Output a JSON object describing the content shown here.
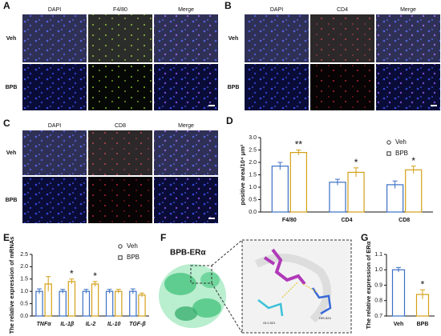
{
  "panels": [
    {
      "label": "A",
      "columns": [
        "DAPI",
        "F4/80",
        "Merge"
      ],
      "rows": [
        "Veh",
        "BPB"
      ]
    },
    {
      "label": "B",
      "columns": [
        "DAPI",
        "CD4",
        "Merge"
      ],
      "rows": [
        "Veh",
        "BPB"
      ]
    },
    {
      "label": "C",
      "columns": [
        "DAPI",
        "CD8",
        "Merge"
      ],
      "rows": [
        "Veh",
        "BPB"
      ]
    },
    {
      "label": "F",
      "title": "BPB-ERα",
      "residues": [
        "GLY-521",
        "HIS-524"
      ]
    }
  ],
  "chart_data": [
    {
      "type": "bar",
      "label": "D",
      "ylabel": "positive area/10⁴ μm²",
      "categories": [
        "F4/80",
        "CD4",
        "CD8"
      ],
      "series": [
        {
          "name": "Veh",
          "color": "#3b6fc4",
          "values": [
            1.85,
            1.2,
            1.1
          ],
          "errors": [
            0.15,
            0.12,
            0.15
          ]
        },
        {
          "name": "BPB",
          "color": "#d4a017",
          "values": [
            2.4,
            1.6,
            1.7
          ],
          "errors": [
            0.1,
            0.18,
            0.15
          ]
        }
      ],
      "annotations": [
        "**",
        "*",
        "*"
      ],
      "ylim": [
        0,
        3
      ],
      "yticks": [
        {
          "value": 0,
          "label": "0.0"
        },
        {
          "value": 0.5,
          "label": "0.5"
        },
        {
          "value": 1,
          "label": "1.0"
        },
        {
          "value": 1.5,
          "label": "1.5"
        },
        {
          "value": 2,
          "label": "2.0"
        },
        {
          "value": 2.5,
          "label": "2.5"
        },
        {
          "value": 3,
          "label": "3.0"
        }
      ],
      "legend": true
    },
    {
      "type": "bar",
      "label": "E",
      "ylabel": "The relative expression of mRNAs",
      "categories": [
        "TNFα",
        "IL-1β",
        "IL-2",
        "IL-10",
        "TGF-β"
      ],
      "series": [
        {
          "name": "Veh",
          "color": "#3b6fc4",
          "values": [
            1.0,
            1.0,
            1.0,
            1.0,
            1.0
          ],
          "errors": [
            0.1,
            0.08,
            0.08,
            0.08,
            0.1
          ]
        },
        {
          "name": "BPB",
          "color": "#d4a017",
          "values": [
            1.3,
            1.4,
            1.3,
            1.0,
            0.85
          ],
          "errors": [
            0.3,
            0.1,
            0.1,
            0.08,
            0.08
          ]
        }
      ],
      "annotations": [
        null,
        "*",
        "*",
        null,
        null
      ],
      "ylim": [
        0,
        2.5
      ],
      "yticks": [
        {
          "value": 0,
          "label": "0.0"
        },
        {
          "value": 0.5,
          "label": "0.5"
        },
        {
          "value": 1,
          "label": "1.0"
        },
        {
          "value": 1.5,
          "label": "1.5"
        },
        {
          "value": 2,
          "label": "2.0"
        },
        {
          "value": 2.5,
          "label": "2.5"
        }
      ],
      "legend": true
    },
    {
      "type": "bar",
      "label": "G",
      "ylabel": "The relative expression of ERα",
      "categories": [
        "Veh",
        "BPB"
      ],
      "series": [
        {
          "name": "ERα",
          "colors": [
            "#3b6fc4",
            "#d4a017"
          ],
          "values": [
            1.0,
            0.84
          ],
          "errors": [
            0.015,
            0.03
          ]
        }
      ],
      "annotations": [
        null,
        "*"
      ],
      "ylim": [
        0.7,
        1.1
      ],
      "yticks": [
        0.7,
        0.8,
        0.9,
        {
          "value": 1,
          "label": "1.0"
        },
        1.1
      ],
      "legend": false
    }
  ]
}
